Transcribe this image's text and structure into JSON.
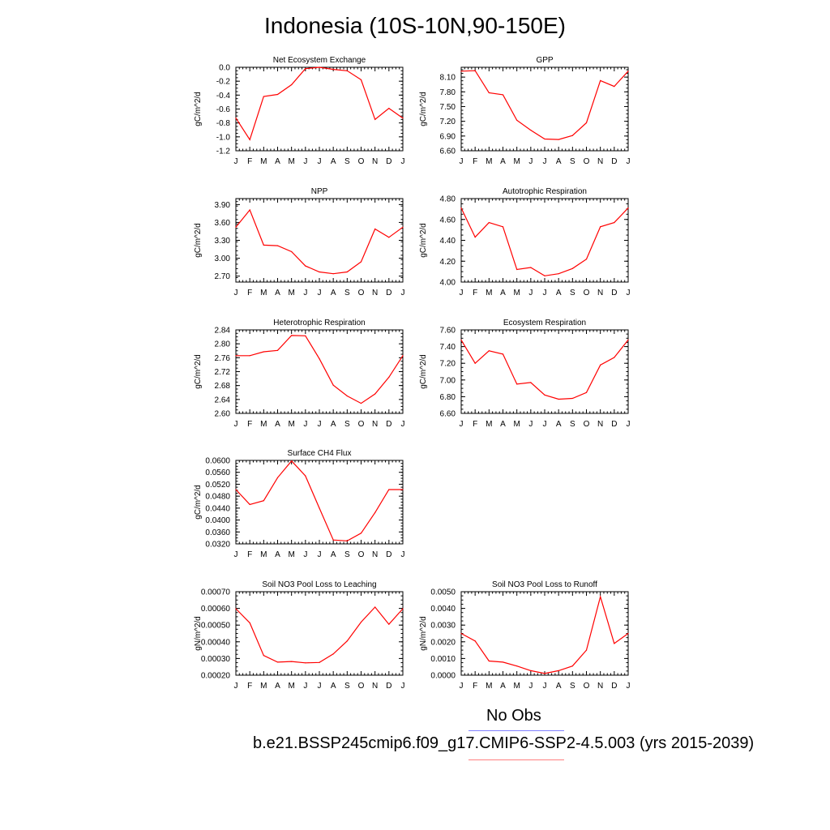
{
  "title": "Indonesia (10S-10N,90-150E)",
  "legend": {
    "obs_label": "No Obs",
    "case_label": "b.e21.BSSP245cmip6.f09_g17.CMIP6-SSP2-4.5.003 (yrs 2015-2039)",
    "obs_color": "#8080ff",
    "case_color": "#ff8080"
  },
  "line_color": "#ff0000",
  "chart_data": [
    {
      "type": "line",
      "title": "Net Ecosystem Exchange",
      "ylabel": "gC/m^2/d",
      "x": [
        "J",
        "F",
        "M",
        "A",
        "M",
        "J",
        "J",
        "A",
        "S",
        "O",
        "N",
        "D",
        "J"
      ],
      "ylim": [
        -1.2,
        0.0
      ],
      "yticks": [
        "0.0",
        "-0.2",
        "-0.4",
        "-0.6",
        "-0.8",
        "-1.0",
        "-1.2"
      ],
      "ytick_values": [
        0.0,
        -0.2,
        -0.4,
        -0.6,
        -0.8,
        -1.0,
        -1.2
      ],
      "values": [
        -0.73,
        -1.04,
        -0.42,
        -0.39,
        -0.25,
        -0.02,
        0.0,
        -0.03,
        -0.05,
        -0.18,
        -0.75,
        -0.59,
        -0.73
      ]
    },
    {
      "type": "line",
      "title": "GPP",
      "ylabel": "gC/m^2/d",
      "x": [
        "J",
        "F",
        "M",
        "A",
        "M",
        "J",
        "J",
        "A",
        "S",
        "O",
        "N",
        "D",
        "J"
      ],
      "ylim": [
        6.6,
        8.3
      ],
      "yticks": [
        "8.10",
        "7.80",
        "7.50",
        "7.20",
        "6.90",
        "6.60"
      ],
      "ytick_values": [
        8.1,
        7.8,
        7.5,
        7.2,
        6.9,
        6.6
      ],
      "values": [
        8.22,
        8.23,
        7.78,
        7.74,
        7.22,
        7.02,
        6.84,
        6.83,
        6.91,
        7.17,
        8.03,
        7.91,
        8.22
      ]
    },
    {
      "type": "line",
      "title": "NPP",
      "ylabel": "gC/m^2/d",
      "x": [
        "J",
        "F",
        "M",
        "A",
        "M",
        "J",
        "J",
        "A",
        "S",
        "O",
        "N",
        "D",
        "J"
      ],
      "ylim": [
        2.6,
        4.0
      ],
      "yticks": [
        "3.90",
        "3.60",
        "3.30",
        "3.00",
        "2.70"
      ],
      "ytick_values": [
        3.9,
        3.6,
        3.3,
        3.0,
        2.7
      ],
      "values": [
        3.52,
        3.81,
        3.22,
        3.21,
        3.11,
        2.87,
        2.77,
        2.74,
        2.77,
        2.94,
        3.49,
        3.35,
        3.52
      ]
    },
    {
      "type": "line",
      "title": "Autotrophic Respiration",
      "ylabel": "gC/m^2/d",
      "x": [
        "J",
        "F",
        "M",
        "A",
        "M",
        "J",
        "J",
        "A",
        "S",
        "O",
        "N",
        "D",
        "J"
      ],
      "ylim": [
        4.0,
        4.8
      ],
      "yticks": [
        "4.80",
        "4.60",
        "4.40",
        "4.20",
        "4.00"
      ],
      "ytick_values": [
        4.8,
        4.6,
        4.4,
        4.2,
        4.0
      ],
      "values": [
        4.71,
        4.43,
        4.57,
        4.53,
        4.12,
        4.14,
        4.06,
        4.08,
        4.13,
        4.22,
        4.53,
        4.57,
        4.71
      ]
    },
    {
      "type": "line",
      "title": "Heterotrophic Respiration",
      "ylabel": "gC/m^2/d",
      "x": [
        "J",
        "F",
        "M",
        "A",
        "M",
        "J",
        "J",
        "A",
        "S",
        "O",
        "N",
        "D",
        "J"
      ],
      "ylim": [
        2.6,
        2.84
      ],
      "yticks": [
        "2.84",
        "2.80",
        "2.76",
        "2.72",
        "2.68",
        "2.64",
        "2.60"
      ],
      "ytick_values": [
        2.84,
        2.8,
        2.76,
        2.72,
        2.68,
        2.64,
        2.6
      ],
      "values": [
        2.766,
        2.766,
        2.777,
        2.781,
        2.824,
        2.823,
        2.757,
        2.681,
        2.65,
        2.629,
        2.656,
        2.704,
        2.766
      ]
    },
    {
      "type": "line",
      "title": "Ecosystem Respiration",
      "ylabel": "gC/m^2/d",
      "x": [
        "J",
        "F",
        "M",
        "A",
        "M",
        "J",
        "J",
        "A",
        "S",
        "O",
        "N",
        "D",
        "J"
      ],
      "ylim": [
        6.6,
        7.6
      ],
      "yticks": [
        "7.60",
        "7.40",
        "7.20",
        "7.00",
        "6.80",
        "6.60"
      ],
      "ytick_values": [
        7.6,
        7.4,
        7.2,
        7.0,
        6.8,
        6.6
      ],
      "values": [
        7.48,
        7.2,
        7.35,
        7.31,
        6.95,
        6.97,
        6.82,
        6.77,
        6.78,
        6.85,
        7.18,
        7.27,
        7.48
      ]
    },
    {
      "type": "line",
      "title": "Surface CH4 Flux",
      "ylabel": "gC/m^2/d",
      "x": [
        "J",
        "F",
        "M",
        "A",
        "M",
        "J",
        "J",
        "A",
        "S",
        "O",
        "N",
        "D",
        "J"
      ],
      "ylim": [
        0.032,
        0.06
      ],
      "yticks": [
        "0.0600",
        "0.0560",
        "0.0520",
        "0.0480",
        "0.0440",
        "0.0400",
        "0.0360",
        "0.0320"
      ],
      "ytick_values": [
        0.06,
        0.056,
        0.052,
        0.048,
        0.044,
        0.04,
        0.036,
        0.032
      ],
      "values": [
        0.0502,
        0.0452,
        0.0465,
        0.0542,
        0.0598,
        0.0548,
        0.044,
        0.0333,
        0.033,
        0.0356,
        0.0425,
        0.0502,
        0.0502
      ]
    },
    {
      "type": "line",
      "title": "Soil NO3 Pool Loss to Leaching",
      "ylabel": "gN/m^2/d",
      "x": [
        "J",
        "F",
        "M",
        "A",
        "M",
        "J",
        "J",
        "A",
        "S",
        "O",
        "N",
        "D",
        "J"
      ],
      "ylim": [
        0.0002,
        0.0007
      ],
      "yticks": [
        "0.00070",
        "0.00060",
        "0.00050",
        "0.00040",
        "0.00030",
        "0.00020"
      ],
      "ytick_values": [
        0.0007,
        0.0006,
        0.0005,
        0.0004,
        0.0003,
        0.0002
      ],
      "values": [
        0.000598,
        0.000513,
        0.000318,
        0.000278,
        0.000282,
        0.000274,
        0.000276,
        0.000327,
        0.000405,
        0.000518,
        0.000608,
        0.000505,
        0.000598
      ]
    },
    {
      "type": "line",
      "title": "Soil NO3 Pool Loss to Runoff",
      "ylabel": "gN/m^2/d",
      "x": [
        "J",
        "F",
        "M",
        "A",
        "M",
        "J",
        "J",
        "A",
        "S",
        "O",
        "N",
        "D",
        "J"
      ],
      "ylim": [
        0.0,
        0.005
      ],
      "yticks": [
        "0.0050",
        "0.0040",
        "0.0030",
        "0.0020",
        "0.0010",
        "0.0000"
      ],
      "ytick_values": [
        0.005,
        0.004,
        0.003,
        0.002,
        0.001,
        0.0
      ],
      "values": [
        0.0025,
        0.00205,
        0.00085,
        0.00078,
        0.00055,
        0.00027,
        0.0001,
        0.00027,
        0.00055,
        0.0015,
        0.0047,
        0.0019,
        0.0025
      ]
    }
  ]
}
